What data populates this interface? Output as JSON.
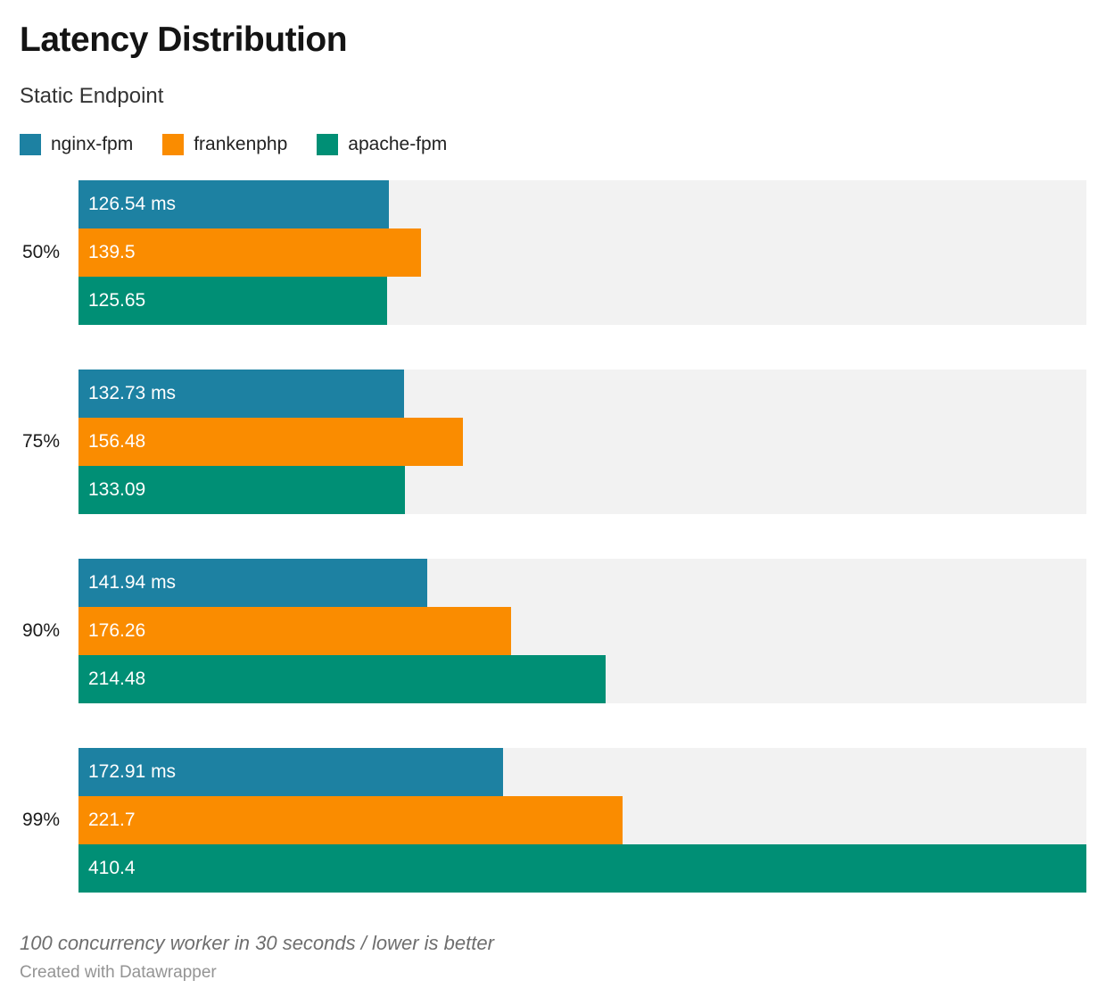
{
  "header": {
    "title": "Latency Distribution",
    "subtitle": "Static Endpoint"
  },
  "legend": [
    {
      "label": "nginx-fpm",
      "color": "#1d81a2"
    },
    {
      "label": "frankenphp",
      "color": "#fa8c00"
    },
    {
      "label": "apache-fpm",
      "color": "#008f75"
    }
  ],
  "chart_data": {
    "type": "bar",
    "orientation": "horizontal",
    "title": "Latency Distribution",
    "subtitle": "Static Endpoint",
    "categories": [
      "50%",
      "75%",
      "90%",
      "99%"
    ],
    "series": [
      {
        "name": "nginx-fpm",
        "color": "#1d81a2",
        "values": [
          126.54,
          132.73,
          141.94,
          172.91
        ],
        "labels": [
          "126.54 ms",
          "132.73 ms",
          "141.94 ms",
          "172.91 ms"
        ]
      },
      {
        "name": "frankenphp",
        "color": "#fa8c00",
        "values": [
          139.5,
          156.48,
          176.26,
          221.7
        ],
        "labels": [
          "139.5",
          "156.48",
          "176.26",
          "221.7"
        ]
      },
      {
        "name": "apache-fpm",
        "color": "#008f75",
        "values": [
          125.65,
          133.09,
          214.48,
          410.4
        ],
        "labels": [
          "125.65",
          "133.09",
          "214.48",
          "410.4"
        ]
      }
    ],
    "unit": "ms",
    "xlim": [
      0,
      410.4
    ],
    "grid": false,
    "legend_position": "top",
    "track_color": "#f2f2f2",
    "value_label_color": "#ffffff"
  },
  "footer": {
    "note": "100 concurrency worker in 30 seconds / lower is better",
    "credit": "Created with Datawrapper"
  }
}
